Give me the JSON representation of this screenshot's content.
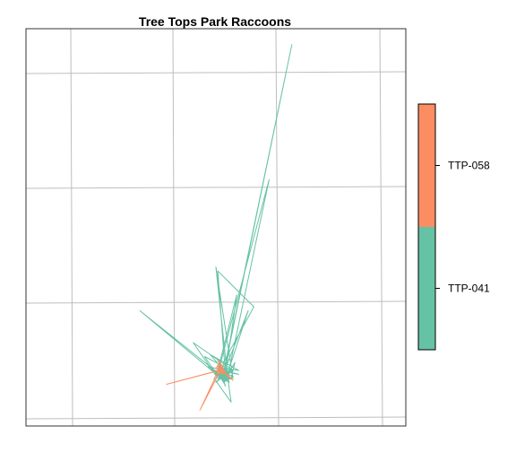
{
  "chart_data": {
    "type": "line",
    "title": "Tree Tops Park Raccoons",
    "xlabel": "",
    "ylabel": "",
    "grid": true,
    "legend": "right",
    "colors": {
      "TTP-041": "#66C2A5",
      "TTP-058": "#FC8D62"
    },
    "series": [
      {
        "name": "TTP-041",
        "color": "#66C2A5",
        "x": [
          0.51,
          0.53,
          0.5,
          0.52,
          0.545,
          0.515,
          0.525,
          0.505,
          0.54,
          0.55,
          0.52,
          0.515,
          0.53,
          0.512,
          0.535,
          0.505,
          0.525,
          0.518,
          0.7,
          0.52,
          0.51,
          0.64,
          0.53,
          0.505,
          0.555,
          0.525,
          0.505,
          0.6,
          0.52,
          0.515,
          0.585,
          0.53,
          0.5,
          0.545,
          0.52,
          0.3,
          0.51,
          0.53,
          0.5,
          0.52,
          0.505,
          0.535,
          0.51,
          0.495,
          0.54,
          0.53,
          0.515,
          0.525,
          0.51,
          0.52,
          0.545,
          0.44,
          0.505,
          0.53,
          0.485,
          0.56,
          0.52,
          0.51,
          0.47,
          0.54,
          0.525,
          0.5,
          0.535,
          0.525,
          0.51,
          0.52,
          0.48,
          0.56,
          0.505,
          0.535,
          0.515,
          0.525,
          0.52
        ],
        "y": [
          0.12,
          0.13,
          0.14,
          0.11,
          0.125,
          0.135,
          0.1,
          0.145,
          0.12,
          0.16,
          0.11,
          0.135,
          0.125,
          0.145,
          0.13,
          0.115,
          0.14,
          0.125,
          0.96,
          0.13,
          0.15,
          0.62,
          0.12,
          0.14,
          0.33,
          0.13,
          0.39,
          0.3,
          0.16,
          0.12,
          0.29,
          0.13,
          0.4,
          0.12,
          0.115,
          0.29,
          0.13,
          0.14,
          0.11,
          0.125,
          0.15,
          0.11,
          0.135,
          0.12,
          0.06,
          0.13,
          0.125,
          0.115,
          0.14,
          0.13,
          0.14,
          0.21,
          0.12,
          0.13,
          0.18,
          0.14,
          0.145,
          0.12,
          0.175,
          0.14,
          0.12,
          0.13,
          0.11,
          0.14,
          0.13,
          0.12,
          0.15,
          0.13,
          0.14,
          0.12,
          0.135,
          0.125,
          0.13
        ]
      },
      {
        "name": "TTP-058",
        "color": "#FC8D62",
        "x": [
          0.515,
          0.505,
          0.52,
          0.51,
          0.5,
          0.525,
          0.512,
          0.508,
          0.37,
          0.51,
          0.518,
          0.505,
          0.52,
          0.512,
          0.458,
          0.512,
          0.506,
          0.515,
          0.51,
          0.545,
          0.512,
          0.508,
          0.515,
          0.505,
          0.51
        ],
        "y": [
          0.14,
          0.15,
          0.13,
          0.16,
          0.145,
          0.135,
          0.15,
          0.14,
          0.105,
          0.14,
          0.15,
          0.165,
          0.14,
          0.15,
          0.04,
          0.14,
          0.145,
          0.13,
          0.15,
          0.115,
          0.14,
          0.15,
          0.135,
          0.145,
          0.14
        ]
      }
    ]
  }
}
